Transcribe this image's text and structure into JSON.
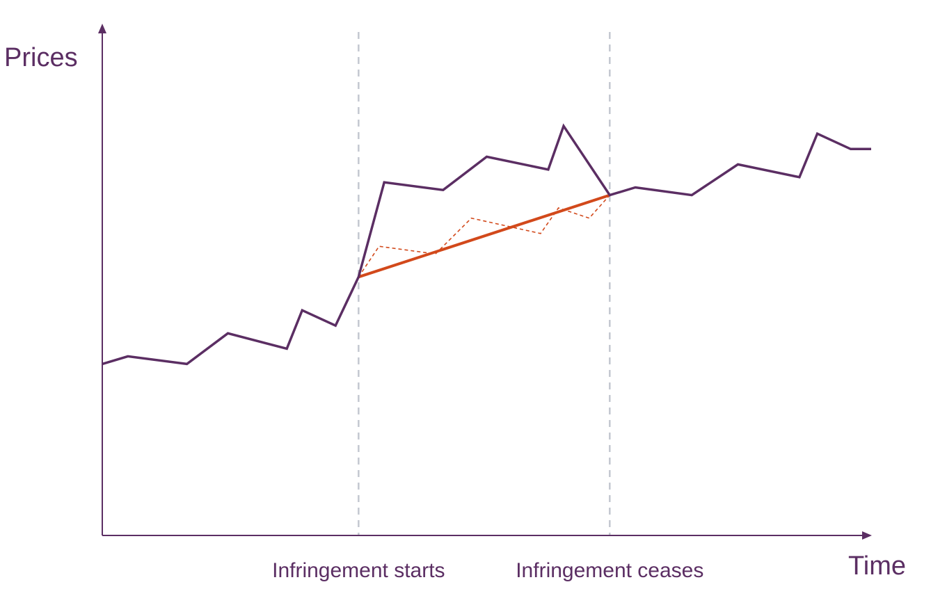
{
  "chart_data": {
    "type": "line",
    "title": "",
    "xlabel": "Time",
    "ylabel": "Prices",
    "xlim": [
      0,
      30
    ],
    "ylim": [
      0,
      100
    ],
    "grid": false,
    "colors": {
      "axis": "#5b2e63",
      "actual": "#5b2e63",
      "counterfactual": "#d2491b",
      "divider": "#c4c8d0"
    },
    "markers": [
      {
        "label": "Infringement starts",
        "x": 10.0
      },
      {
        "label": "Infringement ceases",
        "x": 19.8
      }
    ],
    "series": [
      {
        "key": "actual",
        "style": "solid",
        "x": [
          0,
          1,
          3.3,
          4.9,
          7.2,
          7.8,
          9.1,
          10.0,
          11.0,
          13.3,
          15.0,
          17.4,
          18.0,
          19.8,
          20.8,
          23.0,
          24.8,
          27.2,
          27.9,
          29.2,
          30.0
        ],
        "y": [
          33.5,
          35,
          33.5,
          39.5,
          36.5,
          44,
          41,
          50.5,
          69,
          67.5,
          74,
          71.5,
          80,
          66.5,
          68,
          66.5,
          72.5,
          70,
          78.5,
          75.5,
          75.5
        ]
      },
      {
        "key": "counterfactual-trend",
        "style": "solid",
        "x": [
          10.0,
          19.8
        ],
        "y": [
          50.5,
          66.5
        ]
      },
      {
        "key": "counterfactual-path",
        "style": "dashed",
        "x": [
          10.0,
          10.8,
          13.0,
          14.4,
          17.1,
          17.8,
          19.0,
          19.8
        ],
        "y": [
          50.5,
          56.5,
          55,
          62,
          59,
          64,
          62,
          66.5
        ]
      }
    ]
  }
}
